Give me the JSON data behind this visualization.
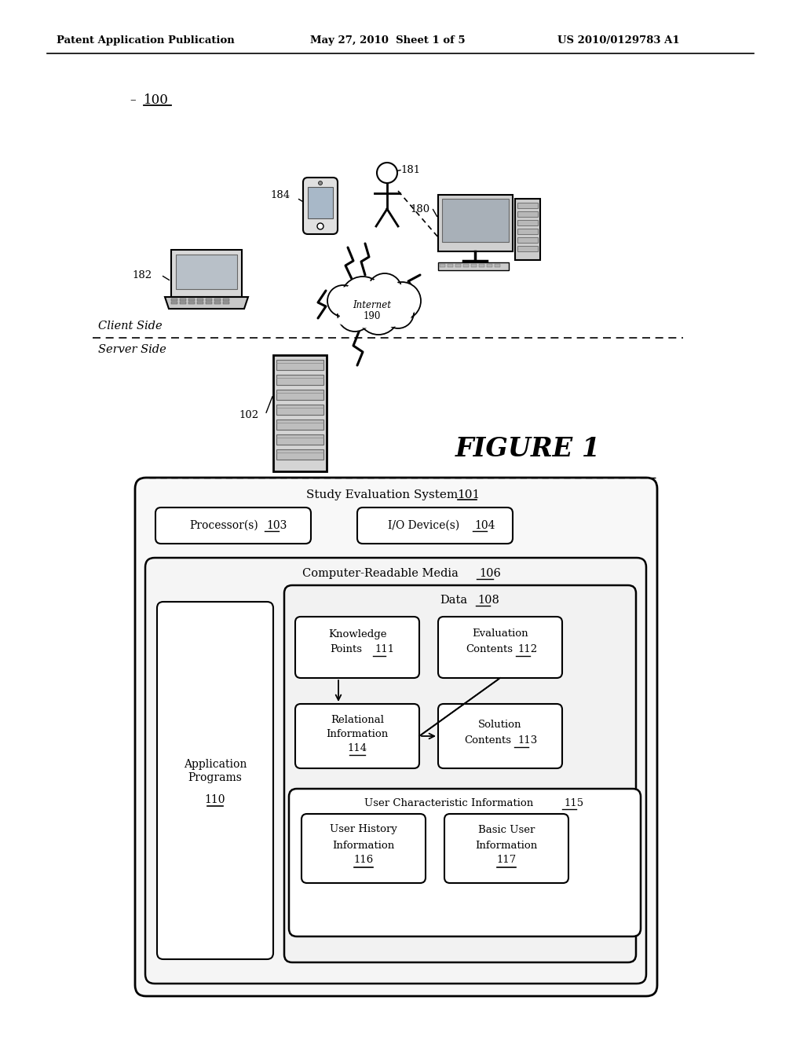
{
  "background_color": "#ffffff",
  "header_left": "Patent Application Publication",
  "header_mid": "May 27, 2010  Sheet 1 of 5",
  "header_right": "US 2010/0129783 A1",
  "figure_label": "FIGURE 1",
  "label_100": "100",
  "label_102": "102",
  "label_181": "181",
  "label_182": "182",
  "label_184": "184",
  "label_180": "180",
  "sys_label_main": "Study Evaluation System",
  "sys_label_num": "101",
  "proc_label": "Processor(s)",
  "proc_num": "103",
  "io_label": "I/O Device(s)",
  "io_num": "104",
  "crm_label": "Computer-Readable Media",
  "crm_num": "106",
  "data_label": "Data",
  "data_num": "108",
  "kp_line1": "Knowledge",
  "kp_line2": "Points",
  "kp_num": "111",
  "ec_line1": "Evaluation",
  "ec_line2": "Contents",
  "ec_num": "112",
  "ri_line1": "Relational",
  "ri_line2": "Information",
  "ri_num": "114",
  "sc_line1": "Solution",
  "sc_line2": "Contents",
  "sc_num": "113",
  "uci_label": "User Characteristic Information",
  "uci_num": "115",
  "uhi_line1": "User History",
  "uhi_line2": "Information",
  "uhi_num": "116",
  "bui_line1": "Basic User",
  "bui_line2": "Information",
  "bui_num": "117",
  "ap_line1": "Application",
  "ap_line2": "Programs",
  "ap_num": "110",
  "client_side": "Client Side",
  "server_side": "Server Side",
  "internet_line1": "Internet",
  "internet_num": "190"
}
